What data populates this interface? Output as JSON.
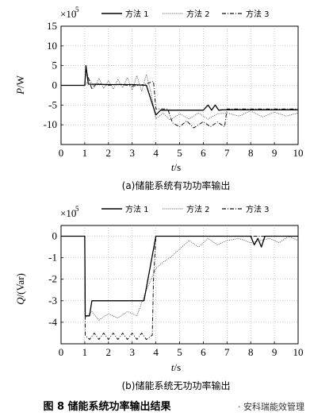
{
  "figure_caption": "图 8   储能系统功率输出结果",
  "watermark": "· 安科瑞能效管理",
  "chart_data": [
    {
      "type": "line",
      "caption": "(a)储能系统有功功率输出",
      "xlabel_var": "t",
      "xlabel_unit": "/s",
      "ylabel_var": "P",
      "ylabel_unit": "/W",
      "multiplier": "×10",
      "multiplier_exp": "5",
      "xlim": [
        0,
        10
      ],
      "ylim": [
        -15,
        15
      ],
      "xticks": [
        "0",
        "1",
        "2",
        "3",
        "4",
        "5",
        "6",
        "7",
        "8",
        "9",
        "10"
      ],
      "yticks": [
        "15",
        "10",
        "5",
        "0",
        "-5",
        "-10"
      ],
      "ytick_values": [
        15,
        10,
        5,
        0,
        -5,
        -10
      ],
      "legend": [
        "方法 1",
        "方法 2",
        "方法 3"
      ],
      "series": [
        {
          "name": "方法 1",
          "style": "solid",
          "x": [
            0,
            1.0,
            1.05,
            1.15,
            2.0,
            3.0,
            3.6,
            4.0,
            4.2,
            6.0,
            6.2,
            6.35,
            6.5,
            6.65,
            6.8,
            7.0,
            10.0
          ],
          "y": [
            0,
            0,
            5,
            0.3,
            0.2,
            0.2,
            0,
            -7.5,
            -6.3,
            -6.3,
            -5,
            -6.3,
            -5,
            -6.3,
            -6.2,
            -6.2,
            -6.2
          ]
        },
        {
          "name": "方法 2",
          "style": "dotted",
          "x": [
            0,
            1.0,
            1.2,
            1.4,
            1.6,
            1.8,
            2.0,
            2.2,
            2.4,
            2.6,
            2.8,
            3.0,
            3.2,
            3.4,
            3.6,
            3.8,
            4.0,
            4.3,
            4.6,
            5.0,
            5.4,
            5.8,
            6.2,
            6.6,
            7.0,
            7.5,
            8.0,
            8.5,
            9.0,
            9.5,
            10.0
          ],
          "y": [
            0,
            0,
            1.5,
            -0.5,
            1.8,
            -0.8,
            1.2,
            -1.0,
            1.6,
            -0.6,
            2.0,
            -1.2,
            2.5,
            -1.5,
            2.8,
            -2.0,
            -8.5,
            -7.0,
            -8.8,
            -7.2,
            -8.5,
            -7.0,
            -8.6,
            -7.2,
            -7.0,
            -7.8,
            -6.5,
            -8.0,
            -6.8,
            -7.8,
            -7.0
          ]
        },
        {
          "name": "方法 3",
          "style": "dashdot",
          "x": [
            0,
            1.0,
            1.05,
            1.3,
            1.5,
            2.0,
            2.5,
            3.0,
            3.5,
            3.9,
            4.0,
            4.5,
            4.7,
            5.0,
            5.3,
            5.6,
            6.0,
            6.3,
            6.6,
            6.9,
            7.0,
            7.5,
            8.0,
            9.0,
            10.0
          ],
          "y": [
            0,
            0,
            4.0,
            -1.0,
            0.5,
            0.0,
            0.3,
            -0.2,
            0.2,
            1.0,
            -6.0,
            -6.0,
            -9.5,
            -10.5,
            -9.0,
            -10.8,
            -9.2,
            -10.5,
            -9.3,
            -10.5,
            -6.0,
            -6.0,
            -6.0,
            -6.0,
            -6.0
          ]
        }
      ]
    },
    {
      "type": "line",
      "caption": "(b)储能系统无功功率输出",
      "xlabel_var": "t",
      "xlabel_unit": "/s",
      "ylabel_var": "Q",
      "ylabel_unit": "/(Var)",
      "multiplier": "×10",
      "multiplier_exp": "5",
      "xlim": [
        0,
        10
      ],
      "ylim": [
        -5,
        0.5
      ],
      "xticks": [
        "0",
        "1",
        "2",
        "3",
        "4",
        "5",
        "6",
        "7",
        "8",
        "9",
        "10"
      ],
      "yticks": [
        "0",
        "-1",
        "-2",
        "-3",
        "-4"
      ],
      "ytick_values": [
        0,
        -1,
        -2,
        -3,
        -4
      ],
      "legend": [
        "方法 1",
        "方法 2",
        "方法 3"
      ],
      "series": [
        {
          "name": "方法 1",
          "style": "solid",
          "x": [
            0,
            1.0,
            1.02,
            1.2,
            1.3,
            1.4,
            2.0,
            3.0,
            3.5,
            4.0,
            8.0,
            8.15,
            8.3,
            8.45,
            8.6,
            8.8,
            10.0
          ],
          "y": [
            0,
            0,
            -3.7,
            -3.7,
            -3.0,
            -3.0,
            -3.0,
            -3.0,
            -3.0,
            0,
            0,
            -0.4,
            -0.1,
            -0.5,
            0,
            0,
            0
          ]
        },
        {
          "name": "方法 2",
          "style": "dotted",
          "x": [
            0,
            1.0,
            1.02,
            1.3,
            1.6,
            2.0,
            2.4,
            2.8,
            3.2,
            3.6,
            4.0,
            4.3,
            4.6,
            5.0,
            5.4,
            5.8,
            6.2,
            6.6,
            7.0,
            7.5,
            8.0,
            8.4,
            8.8,
            9.2,
            9.6,
            10.0
          ],
          "y": [
            0,
            0,
            -3.8,
            -3.5,
            -3.9,
            -3.6,
            -3.8,
            -3.5,
            -3.7,
            -2.5,
            -1.5,
            -1.2,
            -1.0,
            -0.6,
            -0.2,
            -0.5,
            -0.1,
            -0.4,
            -0.2,
            -0.1,
            -0.3,
            -0.2,
            -0.1,
            -0.3,
            0,
            -0.2
          ]
        },
        {
          "name": "方法 3",
          "style": "dashdot",
          "x": [
            0,
            1.0,
            1.02,
            1.2,
            1.4,
            1.6,
            1.8,
            2.0,
            2.2,
            2.4,
            2.6,
            2.8,
            3.0,
            3.2,
            3.4,
            3.6,
            3.85,
            3.9,
            4.0,
            10.0
          ],
          "y": [
            0,
            0,
            -4.6,
            -4.8,
            -4.5,
            -4.8,
            -4.5,
            -4.8,
            -4.5,
            -4.8,
            -4.5,
            -4.8,
            -4.5,
            -4.8,
            -4.5,
            -4.8,
            -4.6,
            -2.0,
            0,
            0
          ]
        }
      ]
    }
  ]
}
